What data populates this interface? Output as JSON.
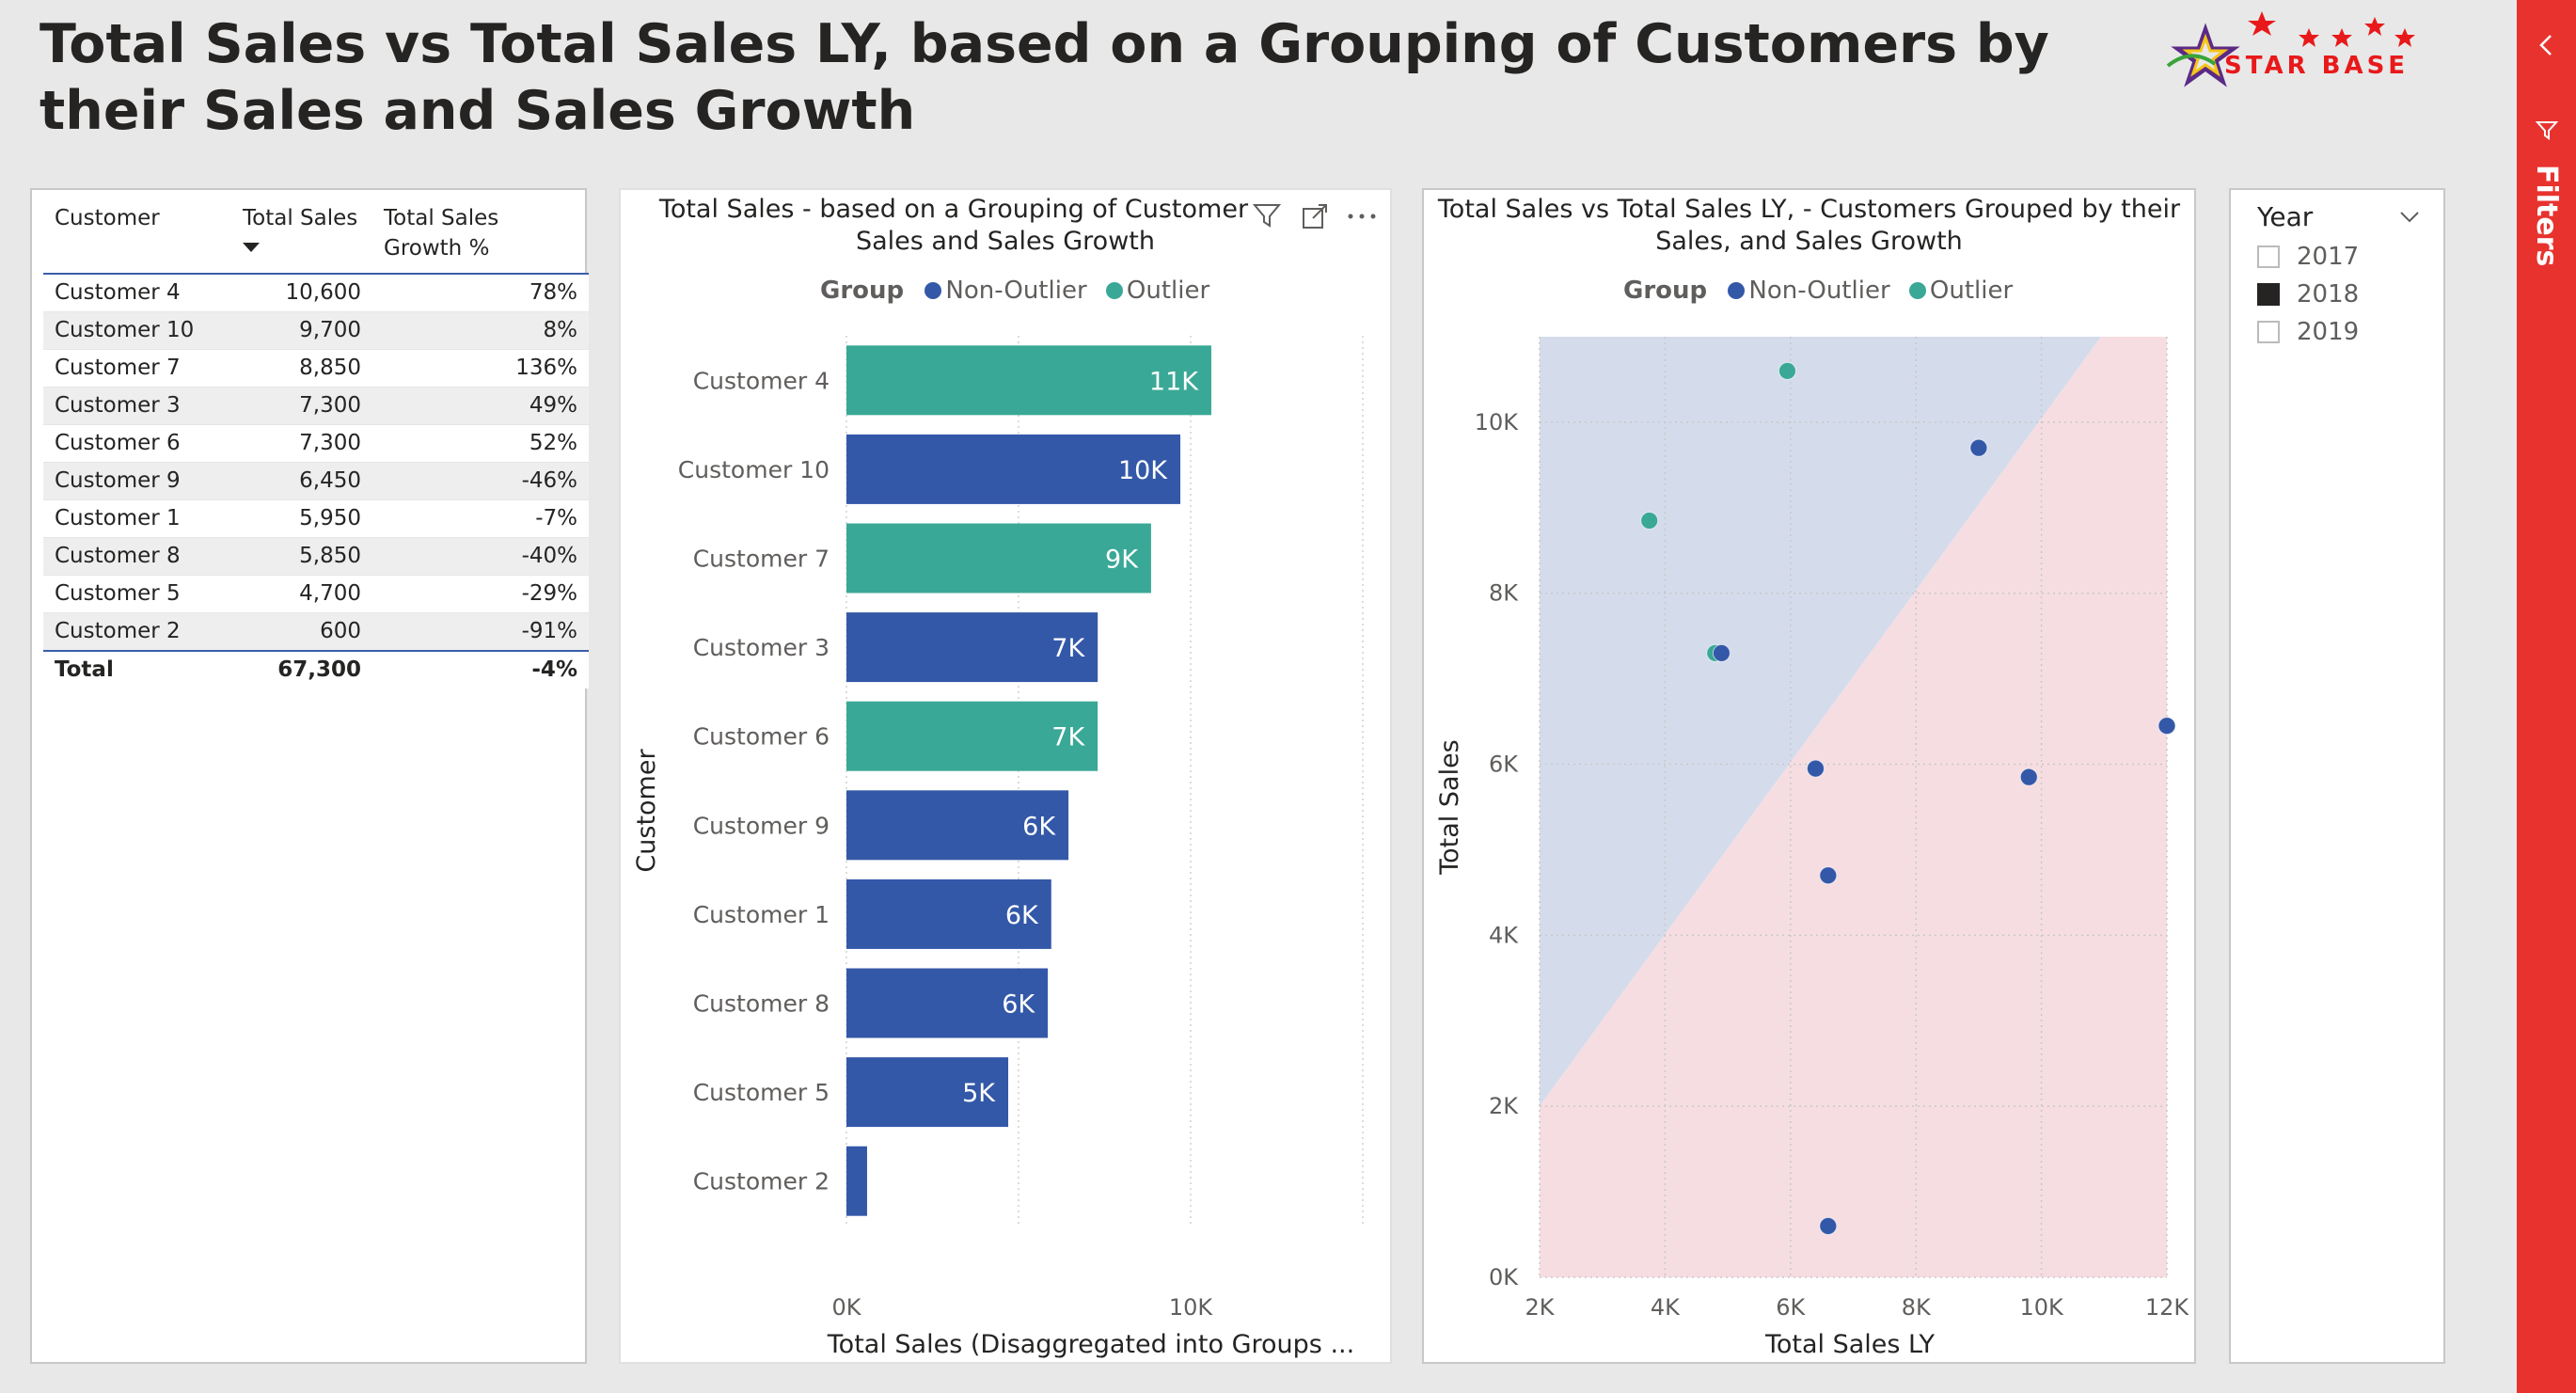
{
  "page": {
    "title": "Total Sales vs Total Sales LY, based on a Grouping of Customers by their Sales and Sales Growth"
  },
  "logo": {
    "text": "STAR BASE",
    "colors": {
      "red": "#e8191a",
      "purple": "#5b2a86",
      "yellow": "#f5c518",
      "green": "#3aa33a"
    }
  },
  "table": {
    "columns": [
      "Customer",
      "Total Sales",
      "Total Sales Growth %"
    ],
    "sort_icon": "sort-desc-icon",
    "rows": [
      {
        "customer": "Customer 4",
        "sales": "10,600",
        "growth": "78%"
      },
      {
        "customer": "Customer 10",
        "sales": "9,700",
        "growth": "8%"
      },
      {
        "customer": "Customer 7",
        "sales": "8,850",
        "growth": "136%"
      },
      {
        "customer": "Customer 3",
        "sales": "7,300",
        "growth": "49%"
      },
      {
        "customer": "Customer 6",
        "sales": "7,300",
        "growth": "52%"
      },
      {
        "customer": "Customer 9",
        "sales": "6,450",
        "growth": "-46%"
      },
      {
        "customer": "Customer 1",
        "sales": "5,950",
        "growth": "-7%"
      },
      {
        "customer": "Customer 8",
        "sales": "5,850",
        "growth": "-40%"
      },
      {
        "customer": "Customer 5",
        "sales": "4,700",
        "growth": "-29%"
      },
      {
        "customer": "Customer 2",
        "sales": "600",
        "growth": "-91%"
      }
    ],
    "total": {
      "label": "Total",
      "sales": "67,300",
      "growth": "-4%"
    }
  },
  "bar_panel": {
    "title_line1": "Total Sales - based on a Grouping of Customer",
    "title_line2": "Sales and Sales Growth",
    "icons": [
      "filter-icon",
      "focus-mode-icon",
      "more-options-icon"
    ]
  },
  "scatter_panel": {
    "title_line1": "Total Sales vs Total Sales LY, - Customers Grouped by their",
    "title_line2": "Sales, and Sales Growth"
  },
  "slicer": {
    "title": "Year",
    "options": [
      {
        "label": "2017",
        "checked": false
      },
      {
        "label": "2018",
        "checked": true
      },
      {
        "label": "2019",
        "checked": false
      }
    ]
  },
  "filters_pane": {
    "label": "Filters"
  },
  "colors": {
    "non_outlier": "#3358a8",
    "outlier": "#3aa896",
    "region_upper": "#d4dcec",
    "region_lower": "#f6dde2"
  },
  "chart_data": [
    {
      "type": "bar",
      "orientation": "horizontal",
      "legend": {
        "title": "Group",
        "entries": [
          "Non-Outlier",
          "Outlier"
        ],
        "placement": "top"
      },
      "ylabel": "Customer",
      "xlabel": "Total Sales (Disaggregated into Groups ...",
      "xlim": [
        0,
        10000
      ],
      "xticks": [
        0,
        10000
      ],
      "xtick_labels": [
        "0K",
        "10K"
      ],
      "grid": true,
      "categories": [
        "Customer 4",
        "Customer 10",
        "Customer 7",
        "Customer 3",
        "Customer 6",
        "Customer 9",
        "Customer 1",
        "Customer 8",
        "Customer 5",
        "Customer 2"
      ],
      "values": [
        10600,
        9700,
        8850,
        7300,
        7300,
        6450,
        5950,
        5850,
        4700,
        600
      ],
      "groups": [
        "Outlier",
        "Non-Outlier",
        "Outlier",
        "Non-Outlier",
        "Outlier",
        "Non-Outlier",
        "Non-Outlier",
        "Non-Outlier",
        "Non-Outlier",
        "Non-Outlier"
      ],
      "data_labels": [
        "11K",
        "10K",
        "9K",
        "7K",
        "7K",
        "6K",
        "6K",
        "6K",
        "5K",
        ""
      ]
    },
    {
      "type": "scatter",
      "legend": {
        "title": "Group",
        "entries": [
          "Non-Outlier",
          "Outlier"
        ],
        "placement": "top"
      },
      "xlabel": "Total Sales LY",
      "ylabel": "Total Sales",
      "xlim": [
        2000,
        12000
      ],
      "ylim": [
        0,
        11000
      ],
      "xticks": [
        2000,
        4000,
        6000,
        8000,
        10000,
        12000
      ],
      "xtick_labels": [
        "2K",
        "4K",
        "6K",
        "8K",
        "10K",
        "12K"
      ],
      "yticks": [
        0,
        2000,
        4000,
        6000,
        8000,
        10000
      ],
      "ytick_labels": [
        "0K",
        "2K",
        "4K",
        "6K",
        "8K",
        "10K"
      ],
      "grid": true,
      "regions": [
        {
          "name": "upper",
          "color": "#d4dcec"
        },
        {
          "name": "lower",
          "color": "#f6dde2"
        }
      ],
      "boundary": [
        [
          2000,
          2000
        ],
        [
          10950,
          11000
        ]
      ],
      "points": [
        {
          "x": 5950,
          "y": 10600,
          "group": "Outlier"
        },
        {
          "x": 9000,
          "y": 9700,
          "group": "Non-Outlier"
        },
        {
          "x": 3750,
          "y": 8850,
          "group": "Outlier"
        },
        {
          "x": 4800,
          "y": 7300,
          "group": "Outlier"
        },
        {
          "x": 4900,
          "y": 7300,
          "group": "Non-Outlier"
        },
        {
          "x": 12000,
          "y": 6450,
          "group": "Non-Outlier"
        },
        {
          "x": 6400,
          "y": 5950,
          "group": "Non-Outlier"
        },
        {
          "x": 9800,
          "y": 5850,
          "group": "Non-Outlier"
        },
        {
          "x": 6600,
          "y": 4700,
          "group": "Non-Outlier"
        },
        {
          "x": 6600,
          "y": 600,
          "group": "Non-Outlier"
        }
      ]
    }
  ]
}
